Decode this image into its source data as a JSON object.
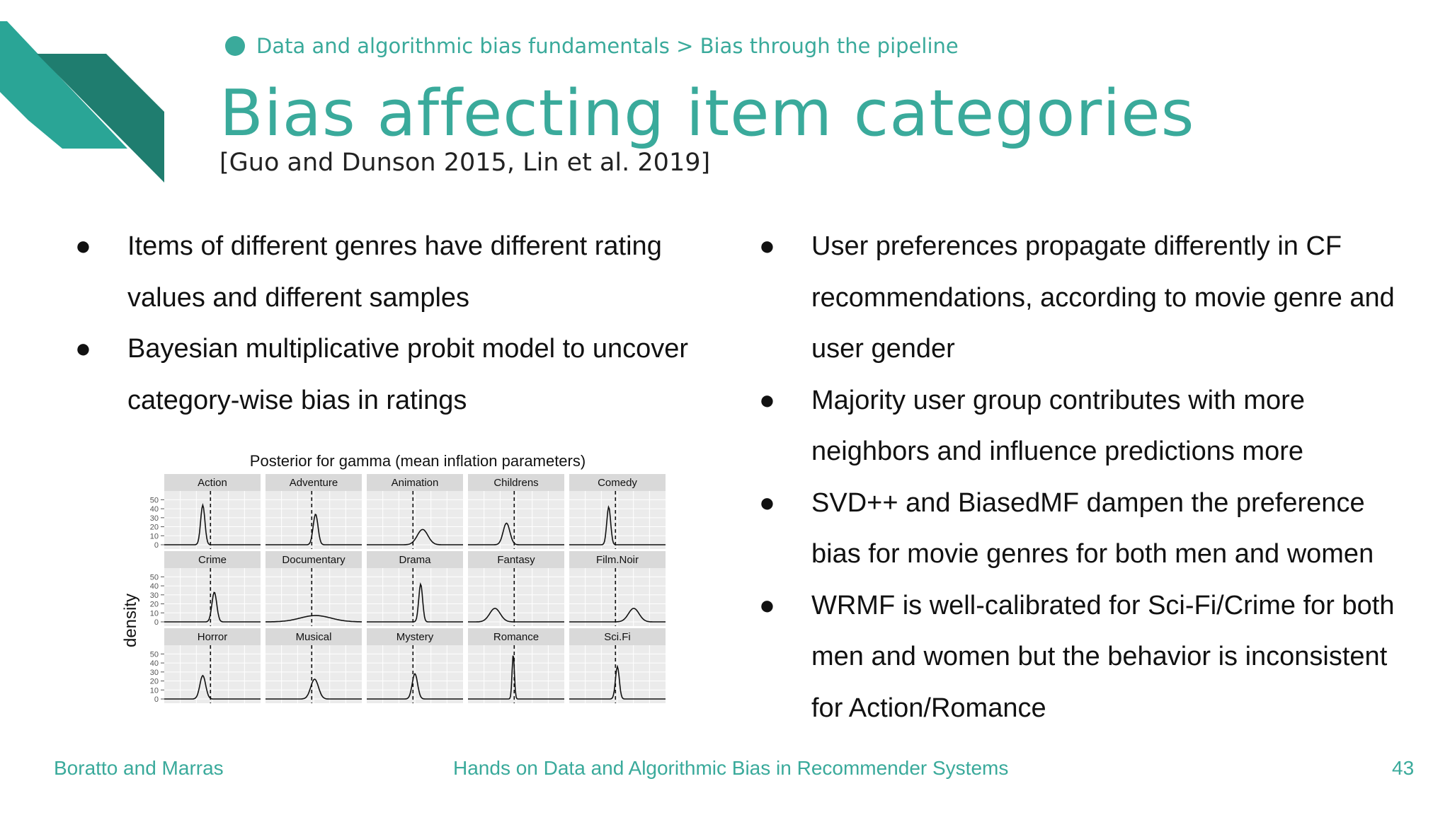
{
  "breadcrumb": {
    "text": "Data and algorithmic bias fundamentals > Bias through the pipeline"
  },
  "title": "Bias affecting item categories",
  "subtitle": "[Guo and Dunson 2015, Lin et al. 2019]",
  "left_bullets": [
    "Items of different genres have different rating values and different samples",
    "Bayesian multiplicative probit model to uncover category-wise bias in ratings"
  ],
  "right_bullets": [
    "User preferences propagate differently in CF recommendations, according to movie genre and user gender",
    "Majority user group contributes with more neighbors and influence predictions more",
    "SVD++ and BiasedMF dampen the preference bias for movie genres for both men and women",
    "WRMF is well-calibrated for  Sci-Fi/Crime for both men and women but the behavior is inconsistent for Action/Romance"
  ],
  "bullet_glyph": "●",
  "footer": {
    "authors": "Boratto and Marras",
    "course": "Hands on Data and Algorithmic Bias in Recommender Systems",
    "page": "43"
  },
  "colors": {
    "accent": "#3aaa9b",
    "accent_dark": "#1f7d6f",
    "panel_bg": "#ebebeb",
    "strip_bg": "#d9d9d9"
  },
  "chart_data": {
    "type": "line",
    "title": "Posterior for gamma (mean inflation parameters)",
    "ylabel": "density",
    "xlabel": "",
    "y_ticks": [
      "0",
      "10",
      "20",
      "30",
      "40",
      "50"
    ],
    "ylim": [
      0,
      55
    ],
    "panels": [
      {
        "name": "Action",
        "peak_x": 0.4,
        "peak_y": 44,
        "sd": 0.022,
        "ref_x": 0.48
      },
      {
        "name": "Adventure",
        "peak_x": 0.52,
        "peak_y": 34,
        "sd": 0.025,
        "ref_x": 0.48
      },
      {
        "name": "Animation",
        "peak_x": 0.58,
        "peak_y": 17,
        "sd": 0.055,
        "ref_x": 0.48
      },
      {
        "name": "Childrens",
        "peak_x": 0.4,
        "peak_y": 24,
        "sd": 0.035,
        "ref_x": 0.48
      },
      {
        "name": "Comedy",
        "peak_x": 0.41,
        "peak_y": 42,
        "sd": 0.02,
        "ref_x": 0.48
      },
      {
        "name": "Crime",
        "peak_x": 0.52,
        "peak_y": 33,
        "sd": 0.025,
        "ref_x": 0.48
      },
      {
        "name": "Documentary",
        "peak_x": 0.52,
        "peak_y": 7,
        "sd": 0.16,
        "ref_x": 0.48
      },
      {
        "name": "Drama",
        "peak_x": 0.56,
        "peak_y": 42,
        "sd": 0.02,
        "ref_x": 0.48
      },
      {
        "name": "Fantasy",
        "peak_x": 0.28,
        "peak_y": 15,
        "sd": 0.055,
        "ref_x": 0.48
      },
      {
        "name": "Film.Noir",
        "peak_x": 0.67,
        "peak_y": 15,
        "sd": 0.055,
        "ref_x": 0.48
      },
      {
        "name": "Horror",
        "peak_x": 0.4,
        "peak_y": 26,
        "sd": 0.03,
        "ref_x": 0.48
      },
      {
        "name": "Musical",
        "peak_x": 0.51,
        "peak_y": 22,
        "sd": 0.04,
        "ref_x": 0.48
      },
      {
        "name": "Mystery",
        "peak_x": 0.5,
        "peak_y": 28,
        "sd": 0.028,
        "ref_x": 0.48
      },
      {
        "name": "Romance",
        "peak_x": 0.47,
        "peak_y": 50,
        "sd": 0.012,
        "ref_x": 0.48
      },
      {
        "name": "Sci.Fi",
        "peak_x": 0.5,
        "peak_y": 36,
        "sd": 0.02,
        "ref_x": 0.48
      }
    ]
  }
}
